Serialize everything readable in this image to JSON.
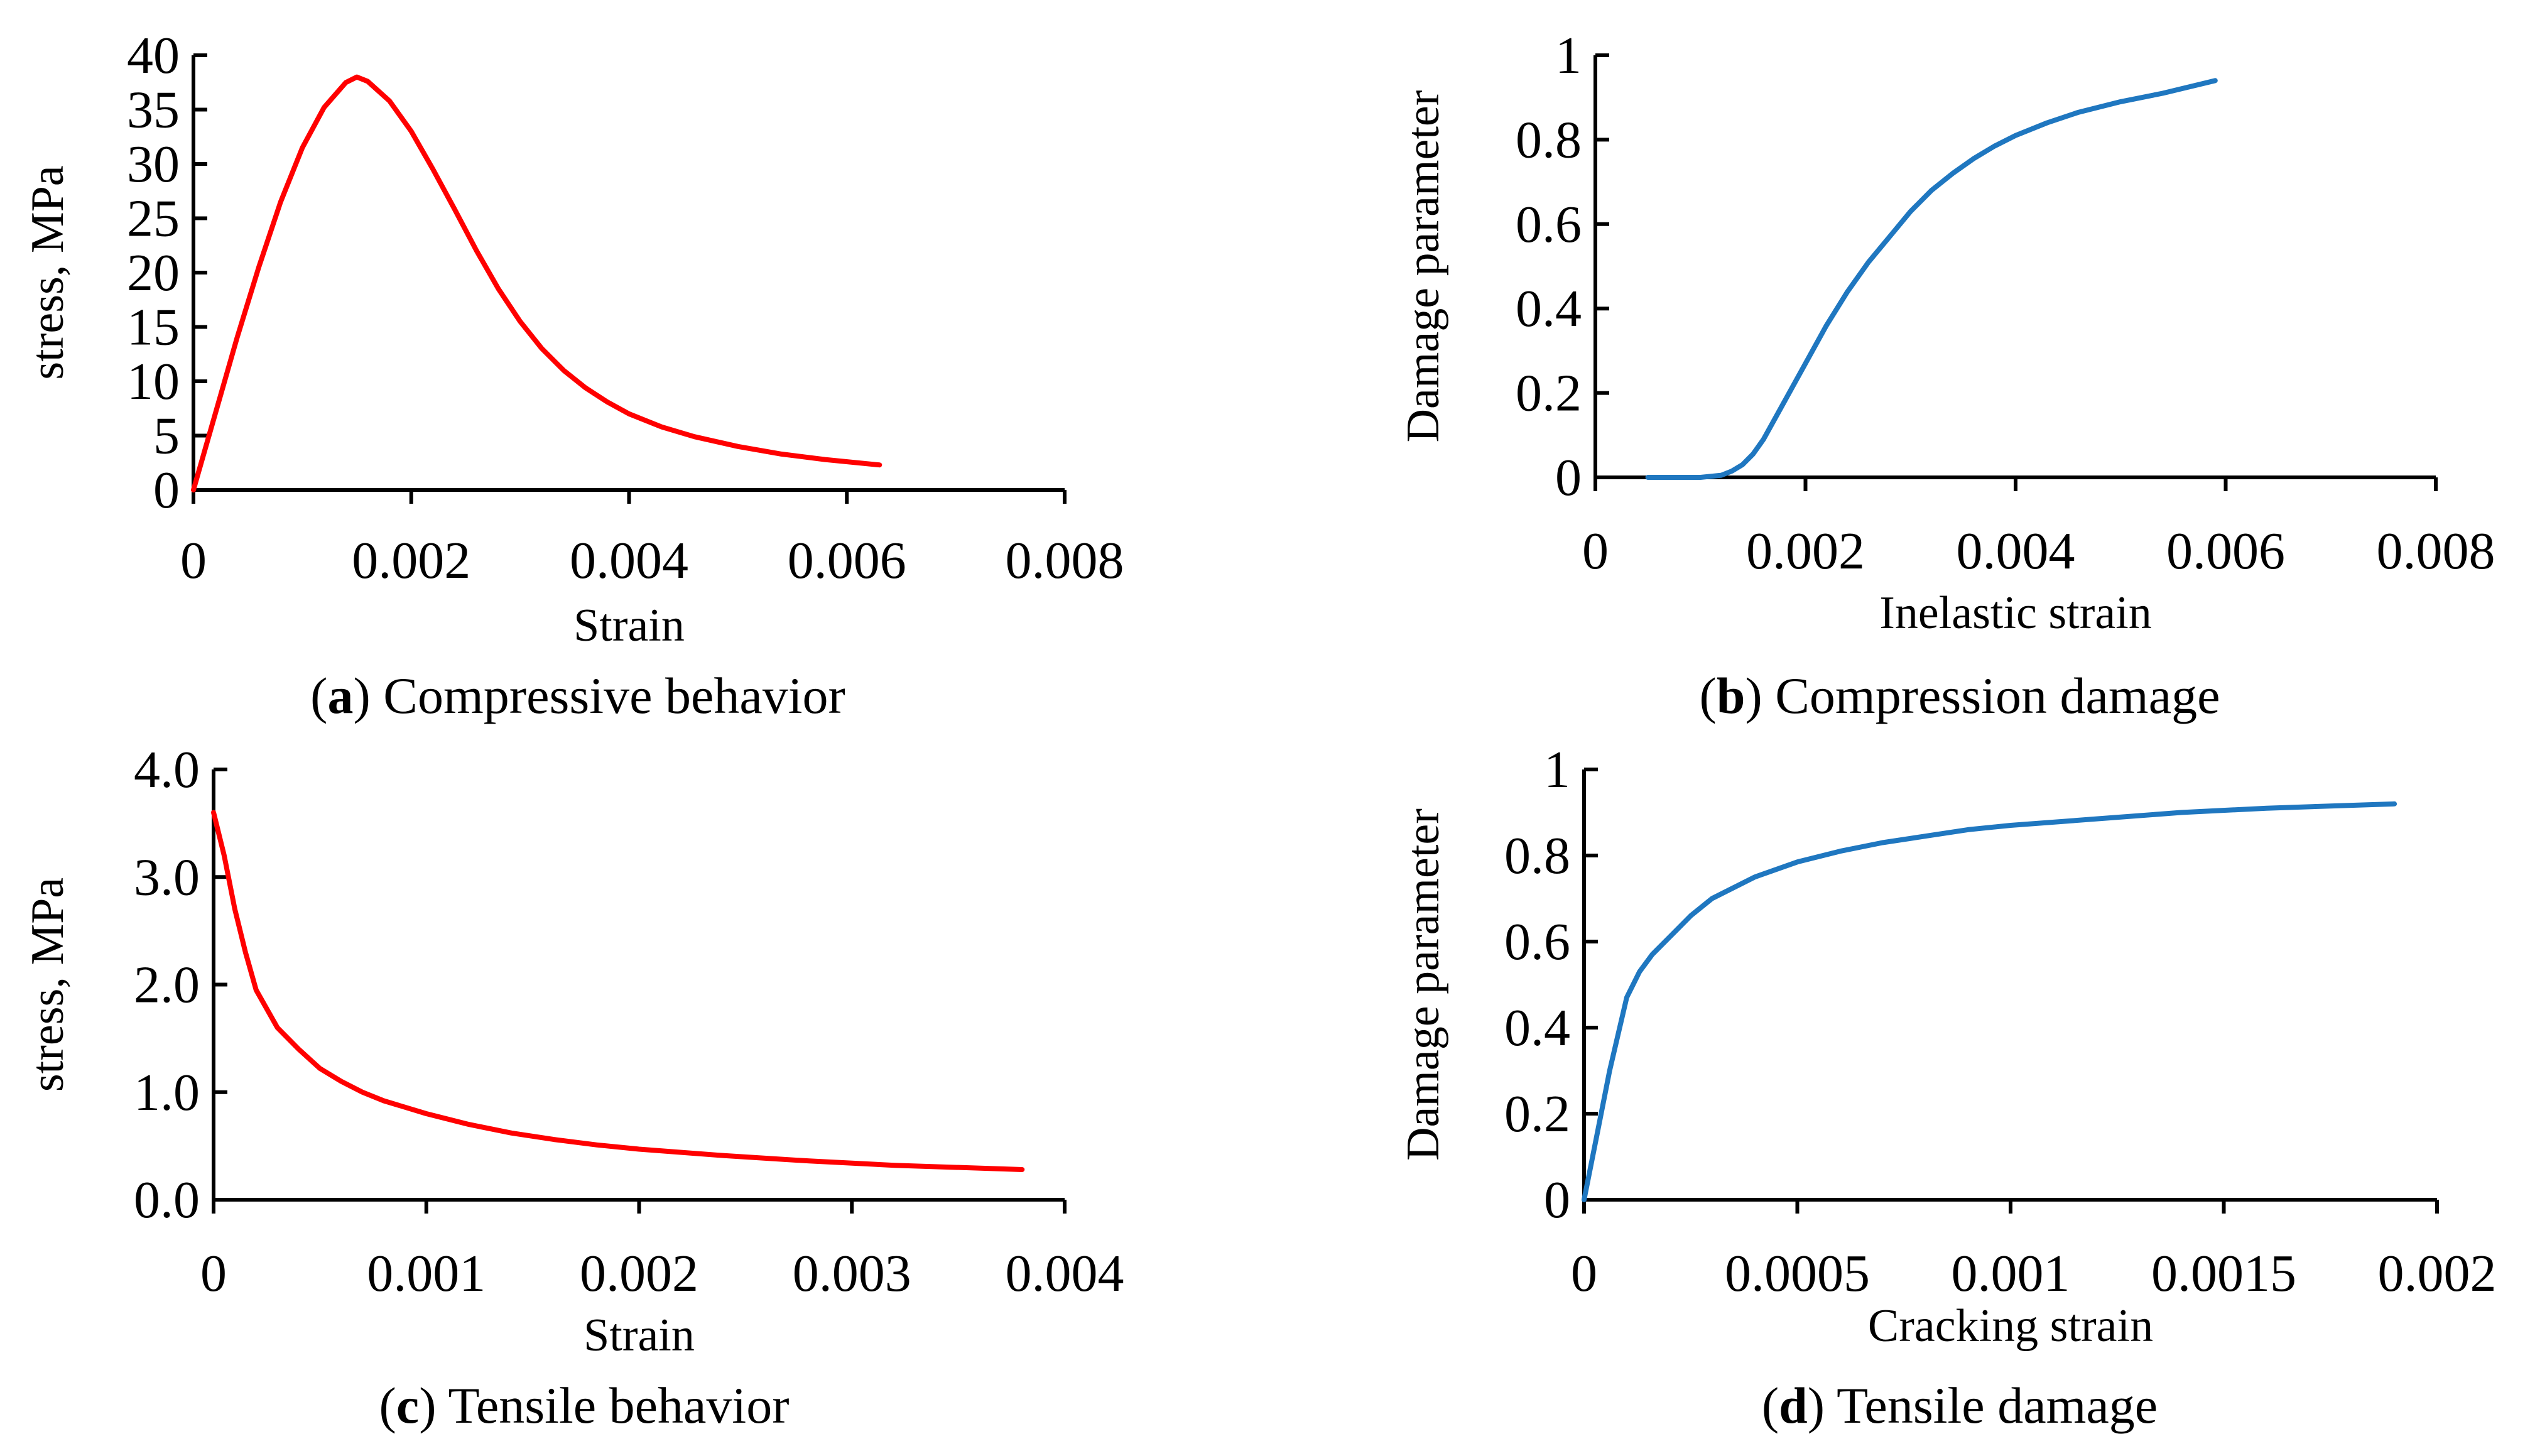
{
  "chart_data": [
    {
      "id": "a",
      "type": "line",
      "xlabel": "Strain",
      "ylabel": "stress, MPa",
      "xlim": [
        0,
        0.008
      ],
      "ylim": [
        0,
        40
      ],
      "xticks": [
        "0",
        "0.002",
        "0.004",
        "0.006",
        "0.008"
      ],
      "yticks": [
        "0",
        "5",
        "10",
        "15",
        "20",
        "25",
        "30",
        "35",
        "40"
      ],
      "caption_letter": "a",
      "caption_text": "Compressive behavior",
      "series_color": "#ff0000",
      "series": [
        {
          "x": [
            0,
            0.0001,
            0.0002,
            0.0004,
            0.0006,
            0.0008,
            0.001,
            0.0012,
            0.0014,
            0.0015,
            0.0016,
            0.0018,
            0.002,
            0.0022,
            0.0024,
            0.0026,
            0.0028,
            0.003,
            0.0032,
            0.0034,
            0.0036,
            0.0038,
            0.004,
            0.0043,
            0.0046,
            0.005,
            0.0054,
            0.0058,
            0.0063
          ],
          "y": [
            0,
            3.5,
            7,
            14,
            20.5,
            26.5,
            31.5,
            35.2,
            37.5,
            38,
            37.6,
            35.8,
            33,
            29.5,
            25.8,
            22,
            18.5,
            15.5,
            13,
            11,
            9.4,
            8.1,
            7,
            5.8,
            4.9,
            4,
            3.3,
            2.8,
            2.3
          ]
        }
      ]
    },
    {
      "id": "b",
      "type": "line",
      "xlabel": "Inelastic strain",
      "ylabel": "Damage parameter",
      "xlim": [
        0,
        0.008
      ],
      "ylim": [
        0,
        1
      ],
      "xticks": [
        "0",
        "0.002",
        "0.004",
        "0.006",
        "0.008"
      ],
      "yticks": [
        "0",
        "0.2",
        "0.4",
        "0.6",
        "0.8",
        "1"
      ],
      "caption_letter": "b",
      "caption_text": "Compression damage",
      "series_color": "#1f77c0",
      "series": [
        {
          "x": [
            0.0005,
            0.001,
            0.0012,
            0.0013,
            0.0014,
            0.0015,
            0.0016,
            0.0018,
            0.002,
            0.0022,
            0.0024,
            0.0026,
            0.0028,
            0.003,
            0.0032,
            0.0034,
            0.0036,
            0.0038,
            0.004,
            0.0043,
            0.0046,
            0.005,
            0.0054,
            0.0059
          ],
          "y": [
            0,
            0,
            0.005,
            0.015,
            0.03,
            0.055,
            0.09,
            0.18,
            0.27,
            0.36,
            0.44,
            0.51,
            0.57,
            0.63,
            0.68,
            0.72,
            0.755,
            0.785,
            0.81,
            0.84,
            0.865,
            0.89,
            0.91,
            0.94
          ]
        }
      ]
    },
    {
      "id": "c",
      "type": "line",
      "xlabel": "Strain",
      "ylabel": "stress, MPa",
      "xlim": [
        0,
        0.004
      ],
      "ylim": [
        0,
        4
      ],
      "xticks": [
        "0",
        "0.001",
        "0.002",
        "0.003",
        "0.004"
      ],
      "yticks": [
        "0.0",
        "1.0",
        "2.0",
        "3.0",
        "4.0"
      ],
      "caption_letter": "c",
      "caption_text": "Tensile behavior",
      "series_color": "#ff0000",
      "series": [
        {
          "x": [
            0,
            5e-05,
            0.0001,
            0.00015,
            0.0002,
            0.0003,
            0.0004,
            0.0005,
            0.0006,
            0.0007,
            0.0008,
            0.001,
            0.0012,
            0.0014,
            0.0016,
            0.0018,
            0.002,
            0.0024,
            0.0028,
            0.0032,
            0.0038
          ],
          "y": [
            3.6,
            3.2,
            2.7,
            2.3,
            1.95,
            1.6,
            1.4,
            1.22,
            1.1,
            1.0,
            0.92,
            0.8,
            0.7,
            0.62,
            0.56,
            0.51,
            0.47,
            0.41,
            0.36,
            0.32,
            0.28
          ]
        }
      ]
    },
    {
      "id": "d",
      "type": "line",
      "xlabel": "Cracking strain",
      "ylabel": "Damage parameter",
      "xlim": [
        0,
        0.002
      ],
      "ylim": [
        0,
        1
      ],
      "xticks": [
        "0",
        "0.0005",
        "0.001",
        "0.0015",
        "0.002"
      ],
      "yticks": [
        "0",
        "0.2",
        "0.4",
        "0.6",
        "0.8",
        "1"
      ],
      "caption_letter": "d",
      "caption_text": "Tensile damage",
      "series_color": "#1f77c0",
      "series": [
        {
          "x": [
            0,
            3e-05,
            6e-05,
            0.0001,
            0.00013,
            0.00016,
            0.0002,
            0.00025,
            0.0003,
            0.0004,
            0.0005,
            0.0006,
            0.0007,
            0.0008,
            0.0009,
            0.001,
            0.0012,
            0.0014,
            0.0016,
            0.0019
          ],
          "y": [
            0,
            0.15,
            0.3,
            0.47,
            0.53,
            0.57,
            0.61,
            0.66,
            0.7,
            0.75,
            0.785,
            0.81,
            0.83,
            0.845,
            0.86,
            0.87,
            0.885,
            0.9,
            0.91,
            0.92
          ]
        }
      ]
    }
  ]
}
